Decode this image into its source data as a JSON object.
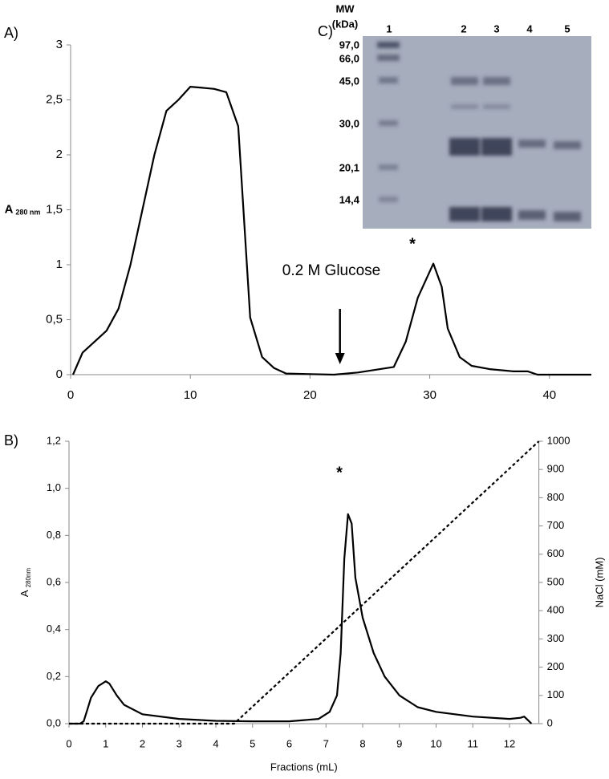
{
  "chart_data": [
    {
      "type": "line",
      "panel": "A)",
      "ylabel": "A",
      "ylabel_sub": "280 nm",
      "xlim": [
        0,
        43.5
      ],
      "xticks": [
        0,
        10,
        20,
        30,
        40
      ],
      "ylim": [
        0,
        3
      ],
      "yticks": [
        0,
        {
          "value": 0.5,
          "label": "0,5"
        },
        1,
        {
          "value": 1.5,
          "label": "1,5"
        },
        2,
        {
          "value": 2.5,
          "label": "2,5"
        },
        3
      ],
      "annotations": [
        {
          "text": "0.2 M Glucose"
        },
        {
          "text": "*"
        }
      ],
      "series": [
        {
          "color": "#000000",
          "x": [
            0.2,
            1,
            3,
            4,
            5,
            6,
            7,
            8,
            9,
            10,
            11,
            12,
            13,
            14,
            15,
            16,
            17,
            18,
            22,
            24,
            27,
            28,
            29,
            30.3,
            31,
            31.5,
            32.5,
            33.5,
            35,
            37,
            38.2,
            39,
            43.5
          ],
          "values": [
            0,
            0.2,
            0.4,
            0.6,
            1,
            1.5,
            2,
            2.4,
            2.5,
            2.62,
            2.61,
            2.6,
            2.57,
            2.26,
            0.52,
            0.16,
            0.06,
            0.01,
            0,
            0.02,
            0.07,
            0.3,
            0.7,
            1.01,
            0.8,
            0.42,
            0.16,
            0.08,
            0.05,
            0.03,
            0.03,
            0,
            0
          ]
        }
      ]
    },
    {
      "type": "line",
      "panel": "B)",
      "ylabel": "A",
      "ylabel_sub": "280nm",
      "xlabel": "Fractions (mL)",
      "y2label": "NaCl (mM)",
      "xlim": [
        0,
        12.8
      ],
      "xticks": [
        0,
        1,
        2,
        3,
        4,
        5,
        6,
        7,
        8,
        9,
        10,
        11,
        12
      ],
      "ylim": [
        0,
        1.2
      ],
      "yticks": [
        {
          "value": 0,
          "label": "0,0"
        },
        {
          "value": 0.2,
          "label": "0,2"
        },
        {
          "value": 0.4,
          "label": "0,4"
        },
        {
          "value": 0.6,
          "label": "0,6"
        },
        {
          "value": 0.8,
          "label": "0,8"
        },
        {
          "value": 1.0,
          "label": "1,0"
        },
        {
          "value": 1.2,
          "label": "1,2"
        }
      ],
      "y2lim": [
        0,
        1000
      ],
      "y2ticks": [
        0,
        100,
        200,
        300,
        400,
        500,
        600,
        700,
        800,
        900,
        1000
      ],
      "annotations": [
        {
          "text": "*"
        }
      ],
      "series": [
        {
          "color": "#000000",
          "x": [
            0,
            0.3,
            0.4,
            0.5,
            0.6,
            0.8,
            1,
            1.1,
            1.3,
            1.5,
            2,
            3,
            4,
            5,
            6,
            6.8,
            7.1,
            7.3,
            7.4,
            7.5,
            7.6,
            7.7,
            7.8,
            8,
            8.3,
            8.6,
            9,
            9.5,
            10,
            11,
            12,
            12.3,
            12.4,
            12.5,
            12.6
          ],
          "values": [
            0,
            0,
            0.01,
            0.06,
            0.11,
            0.16,
            0.18,
            0.17,
            0.12,
            0.08,
            0.04,
            0.02,
            0.012,
            0.01,
            0.01,
            0.02,
            0.05,
            0.12,
            0.3,
            0.7,
            0.89,
            0.85,
            0.62,
            0.45,
            0.3,
            0.2,
            0.12,
            0.07,
            0.05,
            0.03,
            0.02,
            0.025,
            0.03,
            0.015,
            0
          ]
        },
        {
          "color": "#000000",
          "dash": true,
          "axis": "y2",
          "x": [
            0,
            4.5,
            12.8
          ],
          "values": [
            0,
            0,
            1000
          ]
        }
      ]
    }
  ],
  "gel": {
    "panel": "C)",
    "title": "MW",
    "subtitle": "(kDa)",
    "lanes": [
      "1",
      "2",
      "3",
      "4",
      "5"
    ],
    "markers": [
      "97,0",
      "66,0",
      "45,0",
      "30,0",
      "20,1",
      "14,4"
    ]
  }
}
